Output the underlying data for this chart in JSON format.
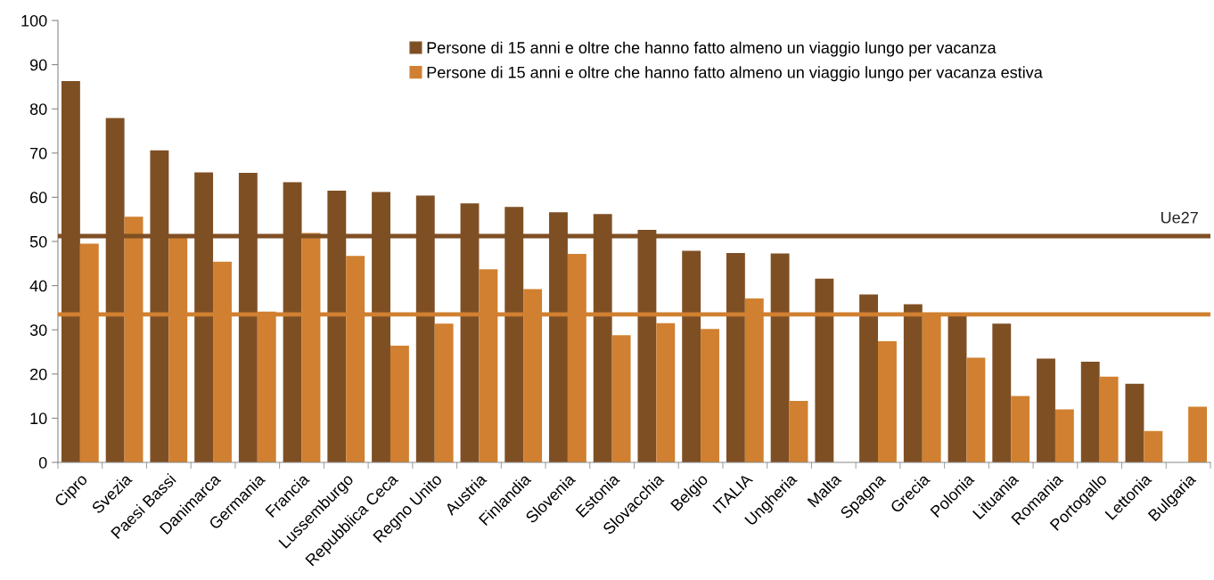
{
  "chart_data": {
    "type": "bar",
    "categories": [
      "Cipro",
      "Svezia",
      "Paesi Bassi",
      "Danimarca",
      "Germania",
      "Francia",
      "Lussemburgo",
      "Repubblica Ceca",
      "Regno Unito",
      "Austria",
      "Finlandia",
      "Slovenia",
      "Estonia",
      "Slovacchia",
      "Belgio",
      "ITALIA",
      "Ungheria",
      "Malta",
      "Spagna",
      "Grecia",
      "Polonia",
      "Lituania",
      "Romania",
      "Portogallo",
      "Lettonia",
      "Bulgaria"
    ],
    "series": [
      {
        "name": "Persone di 15 anni e oltre che hanno fatto almeno un viaggio lungo per vacanza",
        "color": "#7f4f24",
        "values": [
          86.3,
          77.9,
          70.6,
          65.6,
          65.5,
          63.4,
          61.5,
          61.2,
          60.4,
          58.6,
          57.8,
          56.6,
          56.2,
          52.6,
          47.9,
          47.4,
          47.3,
          41.6,
          38.0,
          35.8,
          33.4,
          31.4,
          23.5,
          22.8,
          17.8,
          null
        ]
      },
      {
        "name": "Persone di 15 anni e oltre che hanno fatto almeno un viaggio lungo per vacanza estiva",
        "color": "#d08030",
        "values": [
          49.5,
          55.6,
          51.0,
          45.4,
          34.1,
          51.9,
          46.7,
          26.4,
          31.4,
          43.7,
          39.2,
          47.2,
          28.8,
          31.5,
          30.2,
          37.1,
          13.9,
          null,
          27.4,
          33.8,
          23.7,
          15.0,
          12.0,
          19.4,
          7.1,
          12.6
        ]
      }
    ],
    "ref_lines": [
      {
        "axis": "y",
        "value": 51.2,
        "label": "Ue27",
        "color": "#7f4f24"
      },
      {
        "axis": "y",
        "value": 33.5,
        "label": null,
        "color": "#d08030"
      }
    ],
    "ylim": [
      0,
      100
    ],
    "yticks": [
      0,
      10,
      20,
      30,
      40,
      50,
      60,
      70,
      80,
      90,
      100
    ],
    "grid": false,
    "legend": "top"
  }
}
